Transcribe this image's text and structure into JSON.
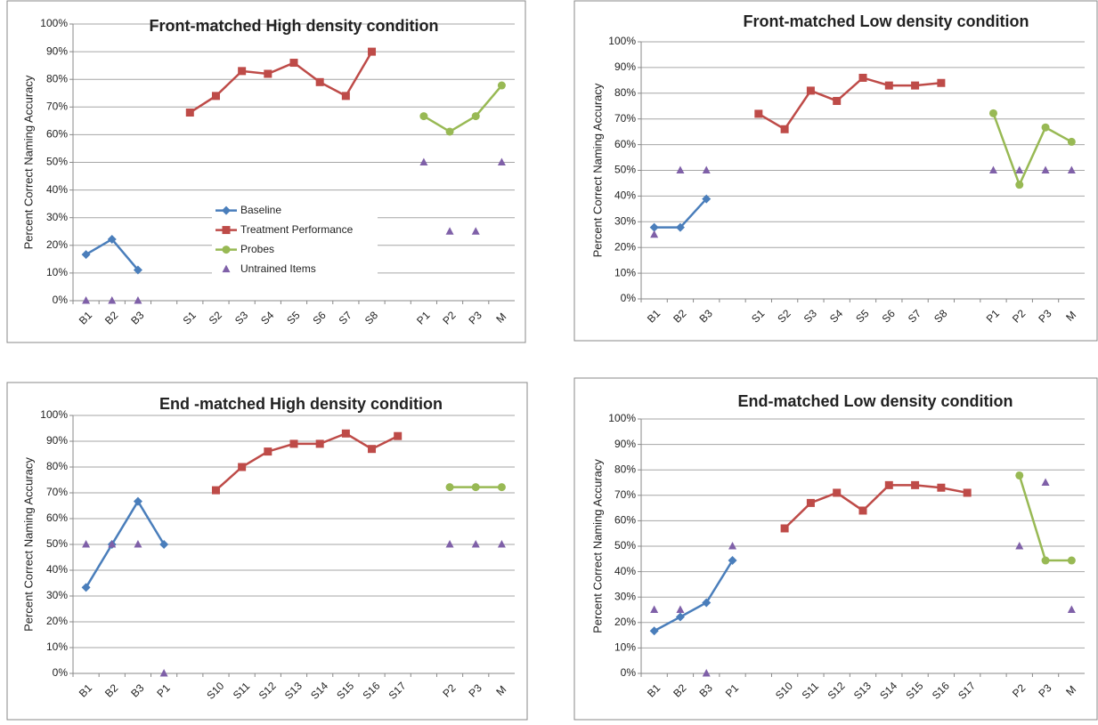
{
  "chart_data": [
    {
      "type": "line",
      "title": "Front-matched High density condition",
      "y_label": "Percent Correct Naming Accuracy",
      "categories": [
        "B1",
        "B2",
        "B3",
        null,
        "S1",
        "S2",
        "S3",
        "S4",
        "S5",
        "S6",
        "S7",
        "S8",
        null,
        "P1",
        "P2",
        "P3",
        "M"
      ],
      "ylim": [
        0,
        100
      ],
      "yticks": [
        {
          "value": 0,
          "label": "0%"
        },
        {
          "value": 10,
          "label": "10%"
        },
        {
          "value": 20,
          "label": "20%"
        },
        {
          "value": 30,
          "label": "30%"
        },
        {
          "value": 40,
          "label": "40%"
        },
        {
          "value": 50,
          "label": "50%"
        },
        {
          "value": 60,
          "label": "60%"
        },
        {
          "value": 70,
          "label": "70%"
        },
        {
          "value": 80,
          "label": "80%"
        },
        {
          "value": 90,
          "label": "90%"
        },
        {
          "value": 100,
          "label": "100%"
        }
      ],
      "grid": true,
      "legend": "center",
      "series": [
        {
          "name": "Baseline",
          "color": "#4a7ebb",
          "marker": "diamond",
          "line": true,
          "values": [
            16.7,
            22.2,
            11.1,
            null,
            null,
            null,
            null,
            null,
            null,
            null,
            null,
            null,
            null,
            null,
            null,
            null,
            null
          ]
        },
        {
          "name": "Treatment Performance",
          "color": "#be4b48",
          "marker": "square",
          "line": true,
          "values": [
            null,
            null,
            null,
            null,
            68,
            74,
            83,
            82,
            86,
            79,
            74,
            90,
            null,
            null,
            null,
            null,
            null
          ]
        },
        {
          "name": "Probes",
          "color": "#98b954",
          "marker": "circle",
          "line": true,
          "values": [
            null,
            null,
            null,
            null,
            null,
            null,
            null,
            null,
            null,
            null,
            null,
            null,
            null,
            66.7,
            61.1,
            66.7,
            77.8
          ]
        },
        {
          "name": "Untrained Items",
          "color": "#7f60a8",
          "marker": "triangle",
          "line": false,
          "values": [
            0,
            0,
            0,
            null,
            null,
            null,
            null,
            null,
            null,
            null,
            null,
            null,
            null,
            50,
            25,
            25,
            50
          ]
        }
      ]
    },
    {
      "type": "line",
      "title": "Front-matched Low density condition",
      "y_label": "Percent Correct Naming Accuracy",
      "categories": [
        "B1",
        "B2",
        "B3",
        null,
        "S1",
        "S2",
        "S3",
        "S4",
        "S5",
        "S6",
        "S7",
        "S8",
        null,
        "P1",
        "P2",
        "P3",
        "M"
      ],
      "ylim": [
        0,
        100
      ],
      "yticks": [
        {
          "value": 0,
          "label": "0%"
        },
        {
          "value": 10,
          "label": "10%"
        },
        {
          "value": 20,
          "label": "20%"
        },
        {
          "value": 30,
          "label": "30%"
        },
        {
          "value": 40,
          "label": "40%"
        },
        {
          "value": 50,
          "label": "50%"
        },
        {
          "value": 60,
          "label": "60%"
        },
        {
          "value": 70,
          "label": "70%"
        },
        {
          "value": 80,
          "label": "80%"
        },
        {
          "value": 90,
          "label": "90%"
        },
        {
          "value": 100,
          "label": "100%"
        }
      ],
      "grid": true,
      "series": [
        {
          "color": "#4a7ebb",
          "marker": "diamond",
          "line": true,
          "values": [
            27.8,
            27.8,
            38.9,
            null,
            null,
            null,
            null,
            null,
            null,
            null,
            null,
            null,
            null,
            null,
            null,
            null,
            null
          ]
        },
        {
          "color": "#be4b48",
          "marker": "square",
          "line": true,
          "values": [
            null,
            null,
            null,
            null,
            72,
            66,
            81,
            77,
            86,
            83,
            83,
            84,
            null,
            null,
            null,
            null,
            null
          ]
        },
        {
          "color": "#98b954",
          "marker": "circle",
          "line": true,
          "values": [
            null,
            null,
            null,
            null,
            null,
            null,
            null,
            null,
            null,
            null,
            null,
            null,
            null,
            72.2,
            44.4,
            66.7,
            61.1
          ]
        },
        {
          "color": "#7f60a8",
          "marker": "triangle",
          "line": false,
          "values": [
            25,
            50,
            50,
            null,
            null,
            null,
            null,
            null,
            null,
            null,
            null,
            null,
            null,
            50,
            50,
            50,
            50
          ]
        }
      ]
    },
    {
      "type": "line",
      "title": "End -matched High density condition",
      "y_label": "Percent Correct Naming Accuracy",
      "categories": [
        "B1",
        "B2",
        "B3",
        "P1",
        null,
        "S10",
        "S11",
        "S12",
        "S13",
        "S14",
        "S15",
        "S16",
        "S17",
        null,
        "P2",
        "P3",
        "M"
      ],
      "ylim": [
        0,
        100
      ],
      "yticks": [
        {
          "value": 0,
          "label": "0%"
        },
        {
          "value": 10,
          "label": "10%"
        },
        {
          "value": 20,
          "label": "20%"
        },
        {
          "value": 30,
          "label": "30%"
        },
        {
          "value": 40,
          "label": "40%"
        },
        {
          "value": 50,
          "label": "50%"
        },
        {
          "value": 60,
          "label": "60%"
        },
        {
          "value": 70,
          "label": "70%"
        },
        {
          "value": 80,
          "label": "80%"
        },
        {
          "value": 90,
          "label": "90%"
        },
        {
          "value": 100,
          "label": "100%"
        }
      ],
      "grid": true,
      "series": [
        {
          "color": "#4a7ebb",
          "marker": "diamond",
          "line": true,
          "values": [
            33.3,
            50,
            66.7,
            50,
            null,
            null,
            null,
            null,
            null,
            null,
            null,
            null,
            null,
            null,
            null,
            null,
            null
          ]
        },
        {
          "color": "#be4b48",
          "marker": "square",
          "line": true,
          "values": [
            null,
            null,
            null,
            null,
            null,
            71,
            80,
            86,
            89,
            89,
            93,
            87,
            92,
            null,
            null,
            null,
            null
          ]
        },
        {
          "color": "#98b954",
          "marker": "circle",
          "line": true,
          "values": [
            null,
            null,
            null,
            null,
            null,
            null,
            null,
            null,
            null,
            null,
            null,
            null,
            null,
            null,
            72.2,
            72.2,
            72.2
          ]
        },
        {
          "color": "#7f60a8",
          "marker": "triangle",
          "line": false,
          "values": [
            50,
            50,
            50,
            0,
            null,
            null,
            null,
            null,
            null,
            null,
            null,
            null,
            null,
            null,
            50,
            50,
            50
          ]
        }
      ]
    },
    {
      "type": "line",
      "title": "End-matched Low density condition",
      "y_label": "Percent Correct Naming Accuracy",
      "categories": [
        "B1",
        "B2",
        "B3",
        "P1",
        null,
        "S10",
        "S11",
        "S12",
        "S13",
        "S14",
        "S15",
        "S16",
        "S17",
        null,
        "P2",
        "P3",
        "M"
      ],
      "ylim": [
        0,
        100
      ],
      "yticks": [
        {
          "value": 0,
          "label": "0%"
        },
        {
          "value": 10,
          "label": "10%"
        },
        {
          "value": 20,
          "label": "20%"
        },
        {
          "value": 30,
          "label": "30%"
        },
        {
          "value": 40,
          "label": "40%"
        },
        {
          "value": 50,
          "label": "50%"
        },
        {
          "value": 60,
          "label": "60%"
        },
        {
          "value": 70,
          "label": "70%"
        },
        {
          "value": 80,
          "label": "80%"
        },
        {
          "value": 90,
          "label": "90%"
        },
        {
          "value": 100,
          "label": "100%"
        }
      ],
      "grid": true,
      "series": [
        {
          "color": "#4a7ebb",
          "marker": "diamond",
          "line": true,
          "values": [
            16.7,
            22.2,
            27.8,
            44.4,
            null,
            null,
            null,
            null,
            null,
            null,
            null,
            null,
            null,
            null,
            null,
            null,
            null
          ]
        },
        {
          "color": "#be4b48",
          "marker": "square",
          "line": true,
          "values": [
            null,
            null,
            null,
            null,
            null,
            57,
            67,
            71,
            64,
            74,
            74,
            73,
            71,
            null,
            null,
            null,
            null
          ]
        },
        {
          "color": "#98b954",
          "marker": "circle",
          "line": true,
          "values": [
            null,
            null,
            null,
            null,
            null,
            null,
            null,
            null,
            null,
            null,
            null,
            null,
            null,
            null,
            77.8,
            44.4,
            44.4
          ]
        },
        {
          "color": "#7f60a8",
          "marker": "triangle",
          "line": false,
          "values": [
            25,
            25,
            0,
            50,
            null,
            null,
            null,
            null,
            null,
            null,
            null,
            null,
            null,
            null,
            50,
            75,
            25
          ]
        }
      ]
    }
  ]
}
